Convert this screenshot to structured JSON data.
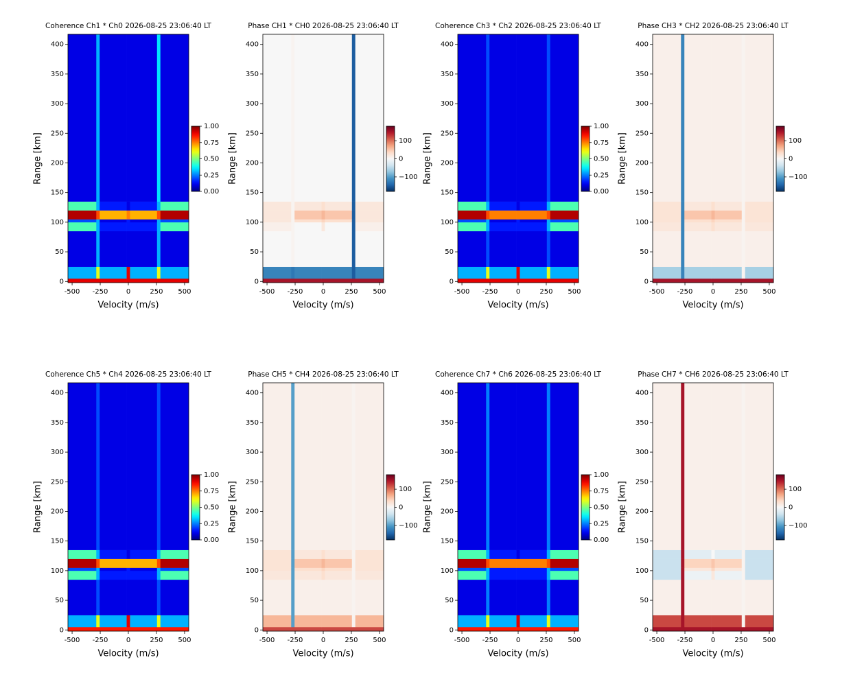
{
  "chart_data": [
    {
      "type": "heatmap",
      "title": "Coherence Ch1 * Ch0 2026-08-25 23:06:40 LT",
      "xlabel": "Velocity (m/s)",
      "ylabel": "Range [km]",
      "xlim": [
        -537,
        537
      ],
      "ylim": [
        -2,
        417
      ],
      "xticks": [
        -500,
        -250,
        0,
        250,
        500
      ],
      "yticks": [
        0,
        50,
        100,
        150,
        200,
        250,
        300,
        350,
        400
      ],
      "colormap": "jet",
      "clim": [
        0,
        1
      ],
      "cticks": [
        {
          "value": 0,
          "label": "0.00"
        },
        {
          "value": 0.25,
          "label": "0.25"
        },
        {
          "value": 0.5,
          "label": "0.50"
        },
        {
          "value": 0.75,
          "label": "0.75"
        },
        {
          "value": 1,
          "label": "1.00"
        }
      ],
      "x_edges": [
        -537,
        -285,
        -255,
        -15,
        15,
        255,
        285,
        537
      ],
      "y_edges": [
        -2,
        5,
        25,
        85,
        100,
        105,
        120,
        135,
        417
      ],
      "values": [
        [
          0.9,
          0.9,
          0.9,
          0.9,
          0.9,
          0.9,
          0.9
        ],
        [
          0.3,
          0.6,
          0.3,
          0.9,
          0.3,
          0.6,
          0.3
        ],
        [
          0.1,
          0.3,
          0.1,
          0.1,
          0.1,
          0.3,
          0.1
        ],
        [
          0.45,
          0.3,
          0.15,
          0.15,
          0.15,
          0.3,
          0.45
        ],
        [
          0.2,
          0.3,
          0.1,
          0.15,
          0.1,
          0.3,
          0.2
        ],
        [
          0.95,
          0.8,
          0.7,
          0.75,
          0.7,
          0.8,
          0.95
        ],
        [
          0.45,
          0.3,
          0.15,
          0.1,
          0.15,
          0.3,
          0.45
        ],
        [
          0.1,
          0.3,
          0.1,
          0.1,
          0.1,
          0.35,
          0.1
        ]
      ]
    },
    {
      "type": "heatmap",
      "title": "Phase CH1 * CH0 2026-08-25 23:06:40 LT",
      "xlabel": "Velocity (m/s)",
      "ylabel": "Range [km]",
      "xlim": [
        -537,
        537
      ],
      "ylim": [
        -2,
        417
      ],
      "xticks": [
        -500,
        -250,
        0,
        250,
        500
      ],
      "yticks": [
        0,
        50,
        100,
        150,
        200,
        250,
        300,
        350,
        400
      ],
      "colormap": "RdBu_r",
      "clim": [
        -180,
        180
      ],
      "cticks": [
        {
          "value": -100,
          "label": "−100"
        },
        0,
        100
      ],
      "x_edges": [
        -537,
        -285,
        -255,
        -15,
        15,
        255,
        285,
        537
      ],
      "y_edges": [
        -2,
        5,
        25,
        85,
        100,
        105,
        120,
        135,
        417
      ],
      "values": [
        [
          150,
          150,
          150,
          150,
          150,
          150,
          150
        ],
        [
          -120,
          -130,
          -120,
          -120,
          -120,
          -150,
          -120
        ],
        [
          0,
          5,
          0,
          0,
          0,
          -150,
          0
        ],
        [
          10,
          5,
          0,
          20,
          0,
          -150,
          10
        ],
        [
          20,
          5,
          30,
          40,
          30,
          -150,
          20
        ],
        [
          20,
          5,
          50,
          60,
          50,
          -150,
          20
        ],
        [
          20,
          5,
          20,
          30,
          20,
          -150,
          20
        ],
        [
          0,
          5,
          0,
          0,
          0,
          -150,
          0
        ]
      ]
    },
    {
      "type": "heatmap",
      "title": "Coherence Ch3 * Ch2 2026-08-25 23:06:40 LT",
      "xlabel": "Velocity (m/s)",
      "ylabel": "Range [km]",
      "xlim": [
        -537,
        537
      ],
      "ylim": [
        -2,
        417
      ],
      "xticks": [
        -500,
        -250,
        0,
        250,
        500
      ],
      "yticks": [
        0,
        50,
        100,
        150,
        200,
        250,
        300,
        350,
        400
      ],
      "colormap": "jet",
      "clim": [
        0,
        1
      ],
      "cticks": [
        {
          "value": 0,
          "label": "0.00"
        },
        {
          "value": 0.25,
          "label": "0.25"
        },
        {
          "value": 0.5,
          "label": "0.50"
        },
        {
          "value": 0.75,
          "label": "0.75"
        },
        {
          "value": 1,
          "label": "1.00"
        }
      ],
      "x_edges": [
        -537,
        -285,
        -255,
        -15,
        15,
        255,
        285,
        537
      ],
      "y_edges": [
        -2,
        5,
        25,
        85,
        100,
        105,
        120,
        135,
        417
      ],
      "values": [
        [
          0.9,
          0.9,
          0.9,
          0.9,
          0.9,
          0.9,
          0.9
        ],
        [
          0.3,
          0.6,
          0.3,
          0.9,
          0.3,
          0.6,
          0.3
        ],
        [
          0.1,
          0.2,
          0.1,
          0.1,
          0.1,
          0.2,
          0.1
        ],
        [
          0.45,
          0.3,
          0.15,
          0.15,
          0.15,
          0.3,
          0.45
        ],
        [
          0.2,
          0.3,
          0.1,
          0.15,
          0.1,
          0.3,
          0.2
        ],
        [
          0.95,
          0.8,
          0.75,
          0.75,
          0.75,
          0.8,
          0.95
        ],
        [
          0.45,
          0.3,
          0.15,
          0.1,
          0.15,
          0.3,
          0.45
        ],
        [
          0.1,
          0.2,
          0.1,
          0.1,
          0.1,
          0.2,
          0.1
        ]
      ]
    },
    {
      "type": "heatmap",
      "title": "Phase CH3 * CH2 2026-08-25 23:06:40 LT",
      "xlabel": "Velocity (m/s)",
      "ylabel": "Range [km]",
      "xlim": [
        -537,
        537
      ],
      "ylim": [
        -2,
        417
      ],
      "xticks": [
        -500,
        -250,
        0,
        250,
        500
      ],
      "yticks": [
        0,
        50,
        100,
        150,
        200,
        250,
        300,
        350,
        400
      ],
      "colormap": "RdBu_r",
      "clim": [
        -180,
        180
      ],
      "cticks": [
        {
          "value": -100,
          "label": "−100"
        },
        0,
        100
      ],
      "x_edges": [
        -537,
        -285,
        -255,
        -15,
        15,
        255,
        285,
        537
      ],
      "y_edges": [
        -2,
        5,
        25,
        85,
        100,
        105,
        120,
        135,
        417
      ],
      "values": [
        [
          150,
          150,
          150,
          150,
          150,
          150,
          150
        ],
        [
          -60,
          -120,
          -60,
          -60,
          -60,
          5,
          -60
        ],
        [
          10,
          -120,
          10,
          10,
          10,
          5,
          10
        ],
        [
          20,
          -120,
          20,
          30,
          20,
          5,
          20
        ],
        [
          25,
          -120,
          30,
          40,
          30,
          5,
          25
        ],
        [
          25,
          -120,
          50,
          60,
          50,
          5,
          25
        ],
        [
          25,
          -120,
          20,
          30,
          20,
          5,
          25
        ],
        [
          10,
          -120,
          10,
          10,
          10,
          5,
          10
        ]
      ]
    },
    {
      "type": "heatmap",
      "title": "Coherence Ch5 * Ch4 2026-08-25 23:06:40 LT",
      "xlabel": "Velocity (m/s)",
      "ylabel": "Range [km]",
      "xlim": [
        -537,
        537
      ],
      "ylim": [
        -2,
        417
      ],
      "xticks": [
        -500,
        -250,
        0,
        250,
        500
      ],
      "yticks": [
        0,
        50,
        100,
        150,
        200,
        250,
        300,
        350,
        400
      ],
      "colormap": "jet",
      "clim": [
        0,
        1
      ],
      "cticks": [
        {
          "value": 0,
          "label": "0.00"
        },
        {
          "value": 0.25,
          "label": "0.25"
        },
        {
          "value": 0.5,
          "label": "0.50"
        },
        {
          "value": 0.75,
          "label": "0.75"
        },
        {
          "value": 1,
          "label": "1.00"
        }
      ],
      "x_edges": [
        -537,
        -285,
        -255,
        -15,
        15,
        255,
        285,
        537
      ],
      "y_edges": [
        -2,
        5,
        25,
        85,
        100,
        105,
        120,
        135,
        417
      ],
      "values": [
        [
          0.85,
          0.85,
          0.85,
          0.85,
          0.85,
          0.85,
          0.85
        ],
        [
          0.3,
          0.6,
          0.3,
          0.9,
          0.3,
          0.6,
          0.3
        ],
        [
          0.1,
          0.2,
          0.1,
          0.1,
          0.1,
          0.2,
          0.1
        ],
        [
          0.45,
          0.3,
          0.15,
          0.15,
          0.15,
          0.3,
          0.45
        ],
        [
          0.2,
          0.3,
          0.1,
          0.15,
          0.1,
          0.3,
          0.2
        ],
        [
          0.95,
          0.8,
          0.7,
          0.7,
          0.7,
          0.8,
          0.95
        ],
        [
          0.45,
          0.3,
          0.15,
          0.1,
          0.15,
          0.3,
          0.45
        ],
        [
          0.1,
          0.2,
          0.1,
          0.1,
          0.1,
          0.2,
          0.1
        ]
      ]
    },
    {
      "type": "heatmap",
      "title": "Phase CH5 * CH4 2026-08-25 23:06:40 LT",
      "xlabel": "Velocity (m/s)",
      "ylabel": "Range [km]",
      "xlim": [
        -537,
        537
      ],
      "ylim": [
        -2,
        417
      ],
      "xticks": [
        -500,
        -250,
        0,
        250,
        500
      ],
      "yticks": [
        0,
        50,
        100,
        150,
        200,
        250,
        300,
        350,
        400
      ],
      "colormap": "RdBu_r",
      "clim": [
        -180,
        180
      ],
      "cticks": [
        {
          "value": -100,
          "label": "−100"
        },
        0,
        100
      ],
      "x_edges": [
        -537,
        -285,
        -255,
        -15,
        15,
        255,
        285,
        537
      ],
      "y_edges": [
        -2,
        5,
        25,
        85,
        100,
        105,
        120,
        135,
        417
      ],
      "values": [
        [
          120,
          120,
          120,
          120,
          120,
          120,
          120
        ],
        [
          60,
          -100,
          60,
          60,
          60,
          5,
          60
        ],
        [
          10,
          -100,
          10,
          10,
          10,
          5,
          10
        ],
        [
          20,
          -100,
          20,
          30,
          20,
          5,
          20
        ],
        [
          25,
          -100,
          30,
          40,
          30,
          5,
          25
        ],
        [
          25,
          -100,
          50,
          60,
          50,
          5,
          25
        ],
        [
          25,
          -100,
          20,
          30,
          20,
          5,
          25
        ],
        [
          10,
          -100,
          10,
          10,
          10,
          5,
          10
        ]
      ]
    },
    {
      "type": "heatmap",
      "title": "Coherence Ch7 * Ch6 2026-08-25 23:06:40 LT",
      "xlabel": "Velocity (m/s)",
      "ylabel": "Range [km]",
      "xlim": [
        -537,
        537
      ],
      "ylim": [
        -2,
        417
      ],
      "xticks": [
        -500,
        -250,
        0,
        250,
        500
      ],
      "yticks": [
        0,
        50,
        100,
        150,
        200,
        250,
        300,
        350,
        400
      ],
      "colormap": "jet",
      "clim": [
        0,
        1
      ],
      "cticks": [
        {
          "value": 0,
          "label": "0.00"
        },
        {
          "value": 0.25,
          "label": "0.25"
        },
        {
          "value": 0.5,
          "label": "0.50"
        },
        {
          "value": 0.75,
          "label": "0.75"
        },
        {
          "value": 1,
          "label": "1.00"
        }
      ],
      "x_edges": [
        -537,
        -285,
        -255,
        -15,
        15,
        255,
        285,
        537
      ],
      "y_edges": [
        -2,
        5,
        25,
        85,
        100,
        105,
        120,
        135,
        417
      ],
      "values": [
        [
          0.85,
          0.85,
          0.85,
          0.85,
          0.85,
          0.85,
          0.85
        ],
        [
          0.3,
          0.6,
          0.3,
          0.9,
          0.3,
          0.6,
          0.3
        ],
        [
          0.1,
          0.25,
          0.1,
          0.1,
          0.1,
          0.25,
          0.1
        ],
        [
          0.45,
          0.3,
          0.15,
          0.15,
          0.15,
          0.3,
          0.45
        ],
        [
          0.2,
          0.3,
          0.15,
          0.15,
          0.15,
          0.3,
          0.2
        ],
        [
          0.95,
          0.8,
          0.75,
          0.75,
          0.75,
          0.8,
          0.95
        ],
        [
          0.45,
          0.3,
          0.15,
          0.1,
          0.15,
          0.3,
          0.45
        ],
        [
          0.1,
          0.25,
          0.1,
          0.1,
          0.1,
          0.25,
          0.1
        ]
      ]
    },
    {
      "type": "heatmap",
      "title": "Phase CH7 * CH6 2026-08-25 23:06:40 LT",
      "xlabel": "Velocity (m/s)",
      "ylabel": "Range [km]",
      "xlim": [
        -537,
        537
      ],
      "ylim": [
        -2,
        417
      ],
      "xticks": [
        -500,
        -250,
        0,
        250,
        500
      ],
      "yticks": [
        0,
        50,
        100,
        150,
        200,
        250,
        300,
        350,
        400
      ],
      "colormap": "RdBu_r",
      "clim": [
        -180,
        180
      ],
      "cticks": [
        {
          "value": -100,
          "label": "−100"
        },
        0,
        100
      ],
      "x_edges": [
        -537,
        -285,
        -255,
        -15,
        15,
        255,
        285,
        537
      ],
      "y_edges": [
        -2,
        5,
        25,
        85,
        100,
        105,
        120,
        135,
        417
      ],
      "values": [
        [
          150,
          150,
          150,
          150,
          150,
          150,
          150
        ],
        [
          120,
          150,
          120,
          120,
          120,
          5,
          120
        ],
        [
          10,
          150,
          10,
          10,
          10,
          5,
          10
        ],
        [
          -40,
          150,
          -10,
          20,
          -10,
          5,
          -40
        ],
        [
          -40,
          150,
          20,
          40,
          20,
          5,
          -40
        ],
        [
          -40,
          150,
          40,
          50,
          40,
          5,
          -40
        ],
        [
          -40,
          150,
          -20,
          0,
          -20,
          5,
          -40
        ],
        [
          10,
          150,
          10,
          10,
          10,
          5,
          10
        ]
      ]
    }
  ]
}
